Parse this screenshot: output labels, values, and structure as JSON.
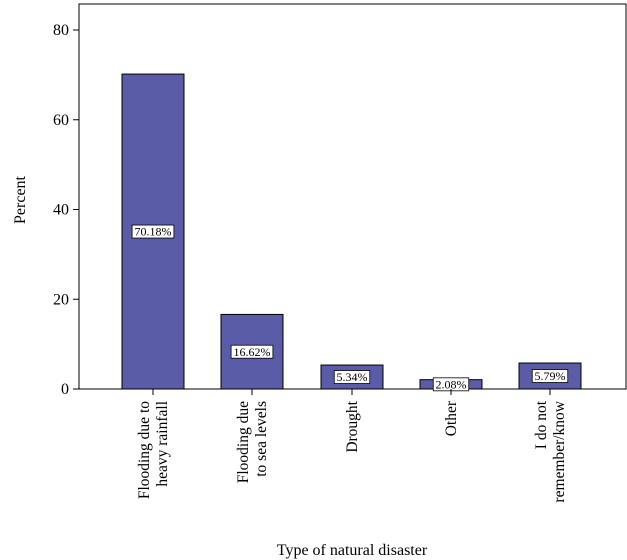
{
  "chart_data": {
    "type": "bar",
    "title": "",
    "xlabel": "Type of natural disaster",
    "ylabel": "Percent",
    "ylim": [
      0,
      80
    ],
    "yticks": [
      0,
      20,
      40,
      60,
      80
    ],
    "grid": false,
    "bar_color": "#5b5ca8",
    "categories": [
      [
        "Flooding due to",
        "heavy rainfall"
      ],
      [
        "Flooding due",
        "to sea levels"
      ],
      [
        "Drought"
      ],
      [
        "Other"
      ],
      [
        "I do not",
        "remember/know"
      ]
    ],
    "values": [
      70.18,
      16.62,
      5.34,
      2.08,
      5.79
    ],
    "data_labels": [
      "70.18%",
      "16.62%",
      "5.34%",
      "2.08%",
      "5.79%"
    ]
  }
}
